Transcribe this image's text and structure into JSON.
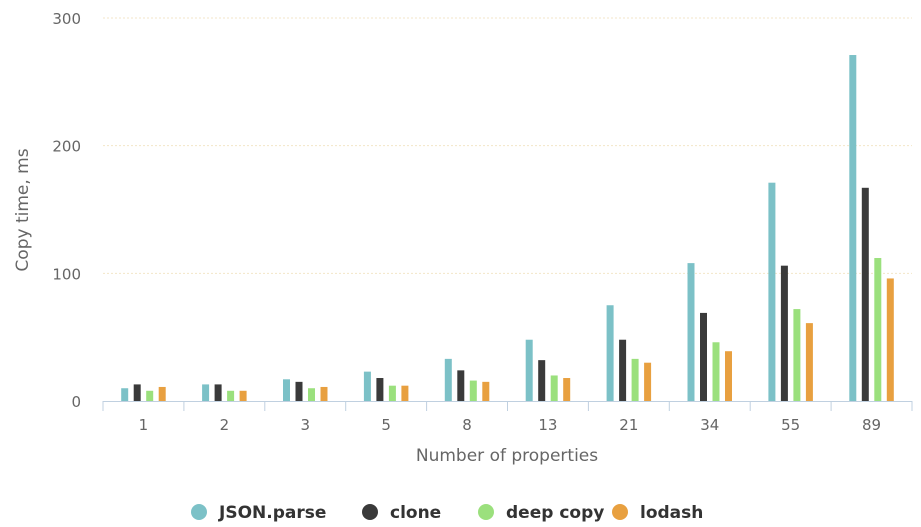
{
  "chart_data": {
    "type": "bar",
    "xlabel": "Number of properties",
    "ylabel": "Copy time, ms",
    "ylim": [
      0,
      300
    ],
    "yticks": [
      0,
      100,
      200,
      300
    ],
    "grid": true,
    "legend_position": "bottom",
    "categories": [
      "1",
      "2",
      "3",
      "5",
      "8",
      "13",
      "21",
      "34",
      "55",
      "89"
    ],
    "series": [
      {
        "name": "JSON.parse",
        "color": "#7cc1c7",
        "values": [
          10,
          13,
          17,
          23,
          33,
          48,
          75,
          108,
          171,
          271
        ]
      },
      {
        "name": "clone",
        "color": "#3a3a3a",
        "values": [
          13,
          13,
          15,
          18,
          24,
          32,
          48,
          69,
          106,
          167
        ]
      },
      {
        "name": "deep copy",
        "color": "#9be07d",
        "values": [
          8,
          8,
          10,
          12,
          16,
          20,
          33,
          46,
          72,
          112
        ]
      },
      {
        "name": "lodash",
        "color": "#e8a040",
        "values": [
          11,
          8,
          11,
          12,
          15,
          18,
          30,
          39,
          61,
          96
        ]
      }
    ]
  }
}
